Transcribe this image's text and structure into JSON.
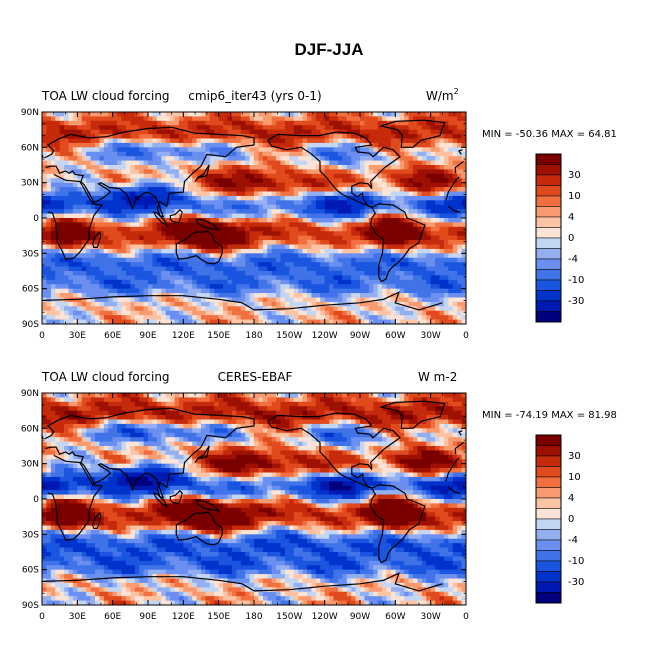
{
  "title": "DJF-JJA",
  "colorbar": {
    "colors": [
      "#00007f",
      "#0019b3",
      "#0033cc",
      "#1a55e0",
      "#4073e8",
      "#6a8ff0",
      "#94afef",
      "#c3d6f4",
      "#fbe3d6",
      "#fcc3a5",
      "#f99b70",
      "#f2703f",
      "#e04a1c",
      "#c52a0a",
      "#9e1002",
      "#7a0000"
    ],
    "labels": [
      "30",
      "10",
      "4",
      "0",
      "-4",
      "-10",
      "-30"
    ]
  },
  "chart_data": [
    {
      "type": "heatmap",
      "panel": "top",
      "title_left": "TOA LW cloud forcing",
      "title_center": "cmip6_iter43 (yrs 0-1)",
      "units": "W/m",
      "units_sup": "2",
      "min": -50.36,
      "max": 64.81,
      "minmax_text": "MIN = -50.36 MAX =  64.81",
      "contour_levels": [
        -40,
        -30,
        -20,
        -15,
        -10,
        -6,
        -4,
        -2,
        0,
        2,
        4,
        6,
        10,
        15,
        20,
        30,
        40
      ],
      "x_ticks": [
        "0",
        "30E",
        "60E",
        "90E",
        "120E",
        "150E",
        "180",
        "150W",
        "120W",
        "90W",
        "60W",
        "30W",
        "0"
      ],
      "y_ticks": [
        "90N",
        "60N",
        "30N",
        "0",
        "30S",
        "60S",
        "90S"
      ],
      "xlim": [
        0,
        360
      ],
      "ylim": [
        -90,
        90
      ]
    },
    {
      "type": "heatmap",
      "panel": "bottom",
      "title_left": "TOA LW cloud forcing",
      "title_center": "CERES-EBAF",
      "units": "W m-2",
      "min": -74.19,
      "max": 81.98,
      "minmax_text": "MIN = -74.19 MAX =  81.98",
      "contour_levels": [
        -40,
        -30,
        -20,
        -15,
        -10,
        -6,
        -4,
        -2,
        0,
        2,
        4,
        6,
        10,
        15,
        20,
        30,
        40
      ],
      "x_ticks": [
        "0",
        "30E",
        "60E",
        "90E",
        "120E",
        "150E",
        "180",
        "150W",
        "120W",
        "90W",
        "60W",
        "30W",
        "0"
      ],
      "y_ticks": [
        "90N",
        "60N",
        "30N",
        "0",
        "30S",
        "60S",
        "90S"
      ],
      "xlim": [
        0,
        360
      ],
      "ylim": [
        -90,
        90
      ]
    }
  ]
}
